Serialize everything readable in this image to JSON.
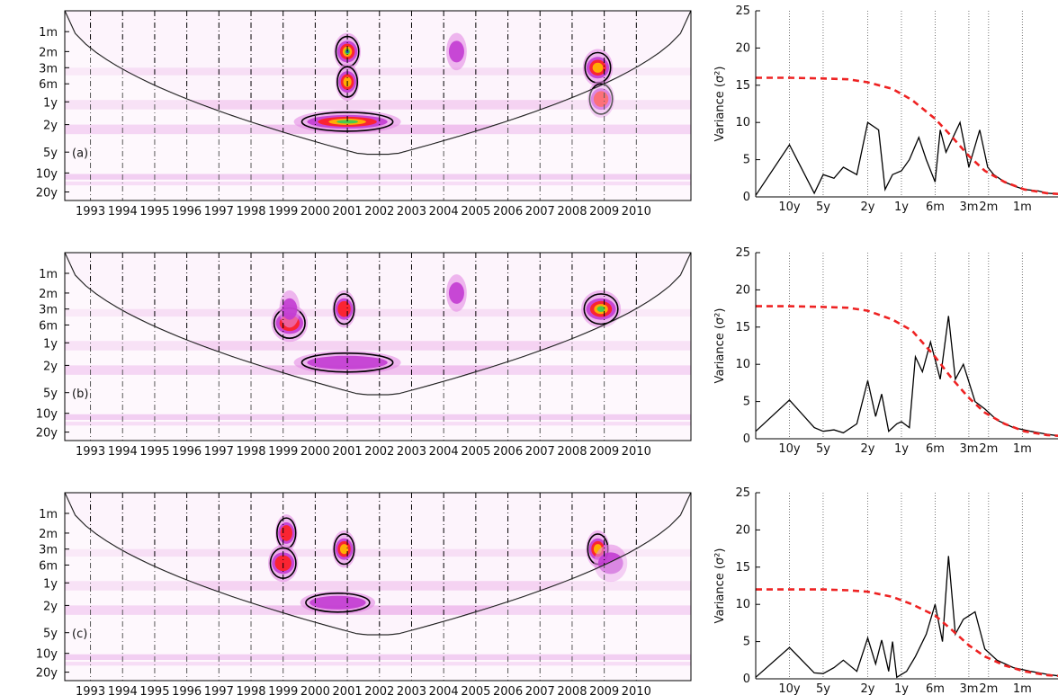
{
  "chart_data": [
    {
      "type": "heatmap",
      "panel_label": "(a)",
      "x_ticks": [
        "1993",
        "1994",
        "1995",
        "1996",
        "1997",
        "1998",
        "1999",
        "2000",
        "2001",
        "2002",
        "2003",
        "2004",
        "2005",
        "2006",
        "2007",
        "2008",
        "2009",
        "2010"
      ],
      "y_ticks": [
        "1m",
        "2m",
        "3m",
        "6m",
        "1y",
        "2y",
        "5y",
        "10y",
        "20y"
      ],
      "xlim": [
        1992.2,
        2011.7
      ],
      "colormap": [
        "#ffffff",
        "#f3c6ef",
        "#c040d0",
        "#ff0000",
        "#ffcc00",
        "#00c040",
        "#0030c0"
      ],
      "features": [
        {
          "x": 2001.0,
          "scale": "2m",
          "intensity": 1.0,
          "width_years": 0.5
        },
        {
          "x": 2001.0,
          "scale": "2y",
          "intensity": 0.85,
          "width_years": 3.0
        },
        {
          "x": 2001.0,
          "scale": "6m",
          "intensity": 0.7,
          "width_years": 0.4
        },
        {
          "x": 2008.8,
          "scale": "3m",
          "intensity": 0.6,
          "width_years": 0.6
        },
        {
          "x": 2008.9,
          "scale": "1y",
          "intensity": 0.45,
          "width_years": 0.5
        },
        {
          "x": 2004.4,
          "scale": "2m",
          "intensity": 0.3,
          "width_years": 0.3
        }
      ]
    },
    {
      "type": "line",
      "x_ticks": [
        "10y",
        "5y",
        "2y",
        "1y",
        "6m",
        "3m",
        "2m",
        "1m"
      ],
      "y_ticks": [
        "0",
        "5",
        "10",
        "15",
        "20",
        "25"
      ],
      "ylim": [
        0,
        25
      ],
      "ylabel": "Variance (σ²)",
      "series": [
        {
          "style": "solid",
          "color": "#000000",
          "points": [
            [
              20,
              0.2
            ],
            [
              10,
              7
            ],
            [
              6,
              0.5
            ],
            [
              5,
              3
            ],
            [
              4,
              2.5
            ],
            [
              3.3,
              4
            ],
            [
              2.5,
              3
            ],
            [
              2,
              10
            ],
            [
              1.6,
              9
            ],
            [
              1.4,
              1
            ],
            [
              1.2,
              3
            ],
            [
              1,
              3.5
            ],
            [
              0.85,
              5
            ],
            [
              0.7,
              8
            ],
            [
              0.6,
              5
            ],
            [
              0.5,
              2
            ],
            [
              0.45,
              9
            ],
            [
              0.4,
              6
            ],
            [
              0.3,
              10
            ],
            [
              0.25,
              4
            ],
            [
              0.2,
              9
            ],
            [
              0.17,
              4
            ],
            [
              0.15,
              3
            ],
            [
              0.12,
              2
            ],
            [
              0.1,
              1.5
            ],
            [
              0.08,
              1
            ],
            [
              0.06,
              0.8
            ],
            [
              0.05,
              0.5
            ],
            [
              0.04,
              0.4
            ]
          ]
        },
        {
          "style": "dashed",
          "color": "#ee2222",
          "points": [
            [
              20,
              16
            ],
            [
              10,
              16
            ],
            [
              5,
              15.9
            ],
            [
              3,
              15.8
            ],
            [
              2,
              15.4
            ],
            [
              1.2,
              14.5
            ],
            [
              0.8,
              13
            ],
            [
              0.5,
              10.5
            ],
            [
              0.35,
              8
            ],
            [
              0.25,
              5.5
            ],
            [
              0.18,
              3.5
            ],
            [
              0.12,
              2
            ],
            [
              0.08,
              1
            ],
            [
              0.05,
              0.5
            ],
            [
              0.04,
              0.4
            ]
          ]
        }
      ]
    },
    {
      "type": "heatmap",
      "panel_label": "(b)",
      "x_ticks": [
        "1993",
        "1994",
        "1995",
        "1996",
        "1997",
        "1998",
        "1999",
        "2000",
        "2001",
        "2002",
        "2003",
        "2004",
        "2005",
        "2006",
        "2007",
        "2008",
        "2009",
        "2010"
      ],
      "y_ticks": [
        "1m",
        "2m",
        "3m",
        "6m",
        "1y",
        "2y",
        "5y",
        "10y",
        "20y"
      ],
      "xlim": [
        1992.2,
        2011.7
      ],
      "colormap": [
        "#ffffff",
        "#f3c6ef",
        "#c040d0",
        "#ff0000",
        "#ffcc00",
        "#00c040",
        "#0030c0"
      ],
      "features": [
        {
          "x": 2008.9,
          "scale": "3m",
          "intensity": 0.85,
          "width_years": 0.9
        },
        {
          "x": 1999.2,
          "scale": "6m",
          "intensity": 0.55,
          "width_years": 0.8
        },
        {
          "x": 2000.9,
          "scale": "3m",
          "intensity": 0.5,
          "width_years": 0.4
        },
        {
          "x": 2001.0,
          "scale": "2y",
          "intensity": 0.4,
          "width_years": 3.0
        },
        {
          "x": 2004.4,
          "scale": "2m",
          "intensity": 0.3,
          "width_years": 0.3
        },
        {
          "x": 1999.2,
          "scale": "3m",
          "intensity": 0.35,
          "width_years": 0.3
        }
      ]
    },
    {
      "type": "line",
      "x_ticks": [
        "10y",
        "5y",
        "2y",
        "1y",
        "6m",
        "3m",
        "2m",
        "1m"
      ],
      "y_ticks": [
        "0",
        "5",
        "10",
        "15",
        "20",
        "25"
      ],
      "ylim": [
        0,
        25
      ],
      "ylabel": "Variance (σ²)",
      "series": [
        {
          "style": "solid",
          "color": "#000000",
          "points": [
            [
              20,
              1
            ],
            [
              10,
              5.2
            ],
            [
              6,
              1.5
            ],
            [
              5,
              1
            ],
            [
              4,
              1.2
            ],
            [
              3.3,
              0.8
            ],
            [
              2.5,
              2
            ],
            [
              2,
              7.8
            ],
            [
              1.7,
              3
            ],
            [
              1.5,
              6
            ],
            [
              1.3,
              1
            ],
            [
              1.1,
              2
            ],
            [
              1,
              2.3
            ],
            [
              0.85,
              1.5
            ],
            [
              0.75,
              11
            ],
            [
              0.65,
              9
            ],
            [
              0.55,
              13
            ],
            [
              0.45,
              8
            ],
            [
              0.38,
              16.5
            ],
            [
              0.33,
              8
            ],
            [
              0.28,
              10
            ],
            [
              0.22,
              5
            ],
            [
              0.18,
              4
            ],
            [
              0.14,
              2.5
            ],
            [
              0.1,
              1.5
            ],
            [
              0.07,
              1
            ],
            [
              0.05,
              0.6
            ],
            [
              0.04,
              0.4
            ]
          ]
        },
        {
          "style": "dashed",
          "color": "#ee2222",
          "points": [
            [
              20,
              17.8
            ],
            [
              10,
              17.8
            ],
            [
              5,
              17.7
            ],
            [
              3,
              17.6
            ],
            [
              2,
              17.2
            ],
            [
              1.2,
              16
            ],
            [
              0.8,
              14.5
            ],
            [
              0.5,
              11
            ],
            [
              0.35,
              8
            ],
            [
              0.25,
              5.5
            ],
            [
              0.18,
              3.5
            ],
            [
              0.12,
              2
            ],
            [
              0.08,
              1
            ],
            [
              0.05,
              0.5
            ],
            [
              0.04,
              0.4
            ]
          ]
        }
      ]
    },
    {
      "type": "heatmap",
      "panel_label": "(c)",
      "x_ticks": [
        "1993",
        "1994",
        "1995",
        "1996",
        "1997",
        "1998",
        "1999",
        "2000",
        "2001",
        "2002",
        "2003",
        "2004",
        "2005",
        "2006",
        "2007",
        "2008",
        "2009",
        "2010"
      ],
      "y_ticks": [
        "1m",
        "2m",
        "3m",
        "6m",
        "1y",
        "2y",
        "5y",
        "10y",
        "20y"
      ],
      "xlim": [
        1992.2,
        2011.7
      ],
      "colormap": [
        "#ffffff",
        "#f3c6ef",
        "#c040d0",
        "#ff0000",
        "#ffcc00",
        "#00c040",
        "#0030c0"
      ],
      "features": [
        {
          "x": 2000.9,
          "scale": "3m",
          "intensity": 0.7,
          "width_years": 0.4
        },
        {
          "x": 2008.8,
          "scale": "3m",
          "intensity": 0.65,
          "width_years": 0.4
        },
        {
          "x": 1999.1,
          "scale": "2m",
          "intensity": 0.55,
          "width_years": 0.35
        },
        {
          "x": 1999.0,
          "scale": "6m",
          "intensity": 0.45,
          "width_years": 0.6
        },
        {
          "x": 2000.7,
          "scale": "2y",
          "intensity": 0.4,
          "width_years": 2.0
        },
        {
          "x": 2009.2,
          "scale": "6m",
          "intensity": 0.3,
          "width_years": 0.7
        }
      ]
    },
    {
      "type": "line",
      "x_ticks": [
        "10y",
        "5y",
        "2y",
        "1y",
        "6m",
        "3m",
        "2m",
        "1m"
      ],
      "y_ticks": [
        "0",
        "5",
        "10",
        "15",
        "20",
        "25"
      ],
      "ylim": [
        0,
        25
      ],
      "ylabel": "Variance (σ²)",
      "series": [
        {
          "style": "solid",
          "color": "#000000",
          "points": [
            [
              20,
              0.2
            ],
            [
              10,
              4.2
            ],
            [
              6,
              0.8
            ],
            [
              5,
              0.7
            ],
            [
              4,
              1.5
            ],
            [
              3.3,
              2.5
            ],
            [
              2.5,
              1
            ],
            [
              2,
              5.5
            ],
            [
              1.7,
              2
            ],
            [
              1.5,
              5.2
            ],
            [
              1.3,
              1
            ],
            [
              1.2,
              5
            ],
            [
              1.1,
              0.2
            ],
            [
              0.9,
              1
            ],
            [
              0.75,
              3
            ],
            [
              0.6,
              6
            ],
            [
              0.5,
              10
            ],
            [
              0.43,
              5
            ],
            [
              0.38,
              16.5
            ],
            [
              0.33,
              6
            ],
            [
              0.28,
              8
            ],
            [
              0.22,
              9
            ],
            [
              0.18,
              4
            ],
            [
              0.14,
              2.5
            ],
            [
              0.1,
              1.5
            ],
            [
              0.07,
              1
            ],
            [
              0.05,
              0.6
            ],
            [
              0.04,
              0.4
            ]
          ]
        },
        {
          "style": "dashed",
          "color": "#ee2222",
          "points": [
            [
              20,
              12
            ],
            [
              10,
              12
            ],
            [
              5,
              12
            ],
            [
              3,
              11.9
            ],
            [
              2,
              11.7
            ],
            [
              1.2,
              11
            ],
            [
              0.8,
              10
            ],
            [
              0.5,
              8.5
            ],
            [
              0.35,
              6.5
            ],
            [
              0.25,
              4.5
            ],
            [
              0.18,
              3
            ],
            [
              0.12,
              1.8
            ],
            [
              0.08,
              1
            ],
            [
              0.05,
              0.5
            ],
            [
              0.04,
              0.4
            ]
          ]
        }
      ]
    }
  ]
}
